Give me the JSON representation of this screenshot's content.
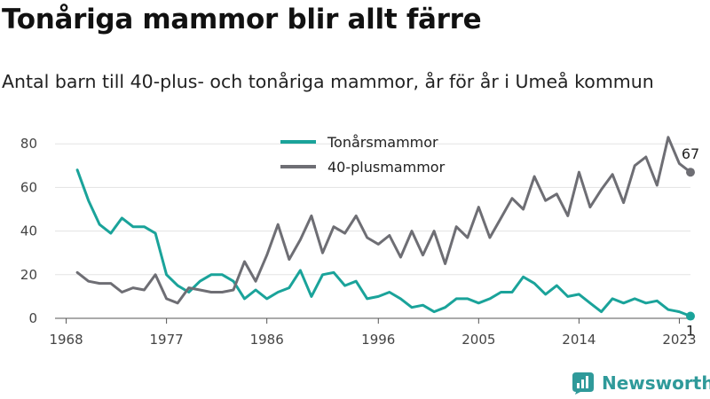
{
  "header": {
    "title": "Tonåriga mammor blir allt färre",
    "subtitle": "Antal barn till 40-plus- och tonåriga mammor, år för år i Umeå kommun"
  },
  "brand": {
    "name": "Newsworthy",
    "icon": "newsworthy-bar-chart-logo-icon"
  },
  "colors": {
    "teen": "#1aa39a",
    "forty": "#6e6e74",
    "grid": "#e3e3e3",
    "axis": "#555555",
    "brand": "#2f9a9a"
  },
  "chart_data": {
    "type": "line",
    "title": "Tonåriga mammor blir allt färre",
    "subtitle": "Antal barn till 40-plus- och tonåriga mammor, år för år i Umeå kommun",
    "xlabel": "",
    "ylabel": "",
    "x_ticks": [
      "1968",
      "1977",
      "1986",
      "1996",
      "2005",
      "2014",
      "2023"
    ],
    "y_ticks": [
      "0",
      "20",
      "40",
      "60",
      "80"
    ],
    "xlim": [
      1967,
      2024
    ],
    "ylim": [
      0,
      87
    ],
    "grid": true,
    "legend_position": "top-center",
    "x": [
      1969,
      1970,
      1971,
      1972,
      1973,
      1974,
      1975,
      1976,
      1977,
      1978,
      1979,
      1980,
      1981,
      1982,
      1983,
      1984,
      1985,
      1986,
      1987,
      1988,
      1989,
      1990,
      1991,
      1992,
      1993,
      1994,
      1995,
      1996,
      1997,
      1998,
      1999,
      2000,
      2001,
      2002,
      2003,
      2004,
      2005,
      2006,
      2007,
      2008,
      2009,
      2010,
      2011,
      2012,
      2013,
      2014,
      2015,
      2016,
      2017,
      2018,
      2019,
      2020,
      2021,
      2022,
      2023
    ],
    "series": [
      {
        "name": "Tonårsmammor",
        "color": "#1aa39a",
        "values": [
          68,
          54,
          43,
          39,
          46,
          42,
          42,
          39,
          20,
          15,
          12,
          17,
          20,
          20,
          17,
          9,
          13,
          9,
          12,
          14,
          22,
          10,
          20,
          21,
          15,
          17,
          9,
          10,
          12,
          9,
          5,
          6,
          3,
          5,
          9,
          9,
          7,
          9,
          12,
          12,
          19,
          16,
          11,
          15,
          10,
          11,
          7,
          3,
          9,
          7,
          9,
          7,
          8,
          4,
          3
        ]
      },
      {
        "name": "40-plusmammor",
        "color": "#6e6e74",
        "values": [
          21,
          17,
          16,
          16,
          12,
          14,
          13,
          20,
          9,
          7,
          14,
          13,
          12,
          12,
          13,
          26,
          17,
          29,
          43,
          27,
          36,
          47,
          30,
          42,
          39,
          47,
          37,
          34,
          38,
          28,
          40,
          29,
          40,
          25,
          42,
          37,
          51,
          37,
          46,
          55,
          50,
          65,
          54,
          57,
          47,
          67,
          51,
          59,
          66,
          53,
          70,
          74,
          61,
          83,
          71
        ]
      }
    ],
    "end_points": [
      {
        "series": "40-plusmammor",
        "x": 2024,
        "y": 67,
        "label": "67"
      },
      {
        "series": "Tonårsmammor",
        "x": 2024,
        "y": 1,
        "label": "1"
      }
    ]
  }
}
